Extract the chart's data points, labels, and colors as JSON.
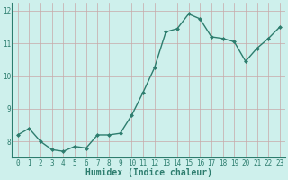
{
  "x": [
    0,
    1,
    2,
    3,
    4,
    5,
    6,
    7,
    8,
    9,
    10,
    11,
    12,
    13,
    14,
    15,
    16,
    17,
    18,
    19,
    20,
    21,
    22,
    23
  ],
  "y": [
    8.2,
    8.4,
    8.0,
    7.75,
    7.7,
    7.85,
    7.8,
    8.2,
    8.2,
    8.25,
    8.8,
    9.5,
    10.25,
    11.35,
    11.45,
    11.9,
    11.75,
    11.2,
    11.15,
    11.05,
    10.45,
    10.85,
    11.15,
    11.5
  ],
  "line_color": "#2d7d6e",
  "marker": "D",
  "marker_size": 2.0,
  "bg_color": "#cef0ec",
  "grid_color": "#c8a8a8",
  "xlabel": "Humidex (Indice chaleur)",
  "ylim": [
    7.5,
    12.25
  ],
  "xlim": [
    -0.5,
    23.5
  ],
  "yticks": [
    8,
    9,
    10,
    11,
    12
  ],
  "xticks": [
    0,
    1,
    2,
    3,
    4,
    5,
    6,
    7,
    8,
    9,
    10,
    11,
    12,
    13,
    14,
    15,
    16,
    17,
    18,
    19,
    20,
    21,
    22,
    23
  ],
  "tick_fontsize": 5.5,
  "xlabel_fontsize": 7.0,
  "linewidth": 1.0,
  "spine_color": "#2d7d6e"
}
